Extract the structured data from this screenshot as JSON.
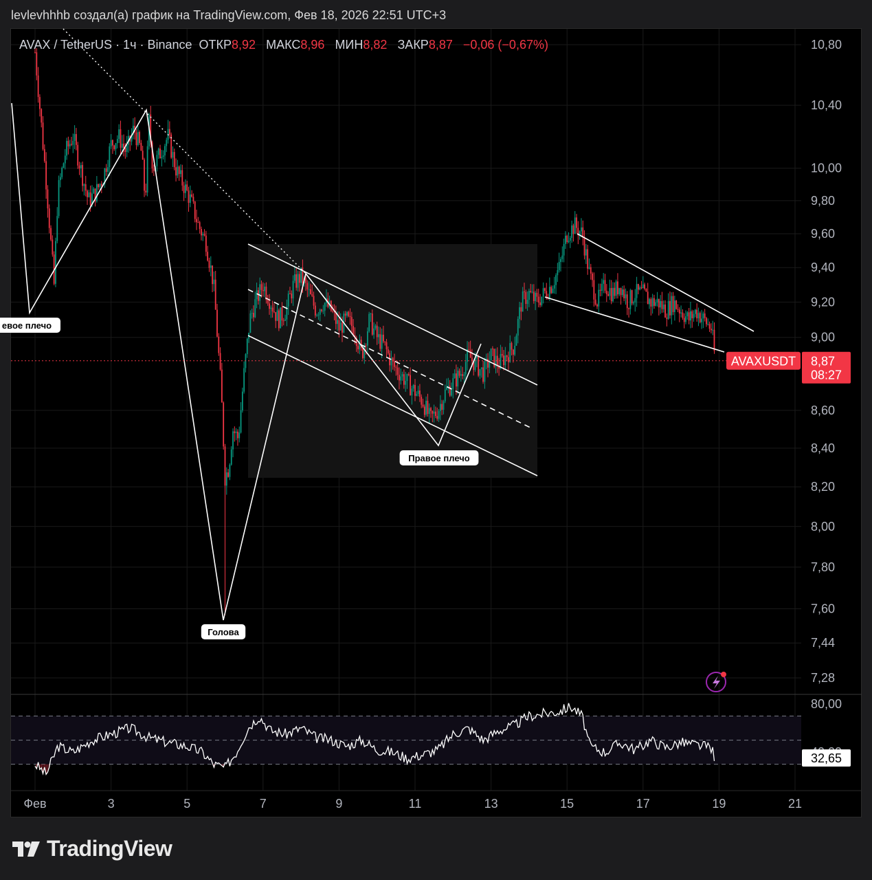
{
  "header": {
    "text": "levlevhhhb создал(а) график на TradingView.com, Фев 18, 2026 22:51 UTC+3"
  },
  "legend": {
    "symbol": "AVAX / TetherUS · 1ч · Binance",
    "open_label": "ОТКР",
    "open_value": "8,92",
    "high_label": "МАКС",
    "high_value": "8,96",
    "low_label": "МИН",
    "low_value": "8,82",
    "close_label": "ЗАКР",
    "close_value": "8,87",
    "change": "−0,06 (−0,67%)"
  },
  "price_tag": {
    "symbol": "AVAXUSDT",
    "price": "8,87",
    "countdown": "08:27"
  },
  "rsi_tag": "32,65",
  "brand": "TradingView",
  "colors": {
    "up": "#089981",
    "down": "#f23645",
    "background": "#000000",
    "grid": "#1a1a1a"
  },
  "chart_data": {
    "type": "candlestick",
    "symbol": "AVAXUSDT",
    "interval": "1h",
    "exchange": "Binance",
    "y_axis": {
      "scale": "log",
      "ticks": [
        "10,80",
        "10,40",
        "10,00",
        "9,80",
        "9,60",
        "9,40",
        "9,20",
        "9,00",
        "8,60",
        "8,40",
        "8,20",
        "8,00",
        "7,80",
        "7,60",
        "7,44",
        "7,28"
      ],
      "tick_values": [
        10.8,
        10.4,
        10.0,
        9.8,
        9.6,
        9.4,
        9.2,
        9.0,
        8.6,
        8.4,
        8.2,
        8.0,
        7.8,
        7.6,
        7.44,
        7.28
      ]
    },
    "x_axis": {
      "ticks": [
        "Фев",
        "3",
        "5",
        "7",
        "9",
        "11",
        "13",
        "15",
        "17",
        "19",
        "21"
      ],
      "tick_days": [
        1,
        3,
        5,
        7,
        9,
        11,
        13,
        15,
        17,
        19,
        21
      ]
    },
    "price_path": [
      [
        1.0,
        10.75
      ],
      [
        1.3,
        9.9
      ],
      [
        1.5,
        9.3
      ],
      [
        1.6,
        9.85
      ],
      [
        1.8,
        10.1
      ],
      [
        2.0,
        10.2
      ],
      [
        2.2,
        10.0
      ],
      [
        2.4,
        9.8
      ],
      [
        2.6,
        9.85
      ],
      [
        2.8,
        9.95
      ],
      [
        3.0,
        10.15
      ],
      [
        3.2,
        10.2
      ],
      [
        3.4,
        10.1
      ],
      [
        3.6,
        10.25
      ],
      [
        3.8,
        10.1
      ],
      [
        3.9,
        9.8
      ],
      [
        4.0,
        10.3
      ],
      [
        4.1,
        10.0
      ],
      [
        4.3,
        10.1
      ],
      [
        4.5,
        10.2
      ],
      [
        4.7,
        10.0
      ],
      [
        4.9,
        9.9
      ],
      [
        5.1,
        9.8
      ],
      [
        5.3,
        9.65
      ],
      [
        5.5,
        9.55
      ],
      [
        5.7,
        9.3
      ],
      [
        5.8,
        9.0
      ],
      [
        5.9,
        8.7
      ],
      [
        6.0,
        8.25
      ],
      [
        6.1,
        8.3
      ],
      [
        6.2,
        8.5
      ],
      [
        6.35,
        8.45
      ],
      [
        6.5,
        8.8
      ],
      [
        6.65,
        9.1
      ],
      [
        6.8,
        9.2
      ],
      [
        7.0,
        9.3
      ],
      [
        7.2,
        9.2
      ],
      [
        7.4,
        9.1
      ],
      [
        7.6,
        9.15
      ],
      [
        7.8,
        9.3
      ],
      [
        8.0,
        9.35
      ],
      [
        8.2,
        9.25
      ],
      [
        8.4,
        9.15
      ],
      [
        8.6,
        9.2
      ],
      [
        8.8,
        9.15
      ],
      [
        9.0,
        9.05
      ],
      [
        9.2,
        9.1
      ],
      [
        9.4,
        9.05
      ],
      [
        9.6,
        8.9
      ],
      [
        9.8,
        9.1
      ],
      [
        10.0,
        9.0
      ],
      [
        10.2,
        8.95
      ],
      [
        10.4,
        8.85
      ],
      [
        10.6,
        8.8
      ],
      [
        10.8,
        8.75
      ],
      [
        11.0,
        8.7
      ],
      [
        11.2,
        8.65
      ],
      [
        11.4,
        8.55
      ],
      [
        11.6,
        8.6
      ],
      [
        11.8,
        8.7
      ],
      [
        12.0,
        8.75
      ],
      [
        12.2,
        8.8
      ],
      [
        12.4,
        8.9
      ],
      [
        12.6,
        8.85
      ],
      [
        12.8,
        8.8
      ],
      [
        13.0,
        8.9
      ],
      [
        13.2,
        8.85
      ],
      [
        13.4,
        8.9
      ],
      [
        13.6,
        8.95
      ],
      [
        13.8,
        9.2
      ],
      [
        14.0,
        9.25
      ],
      [
        14.2,
        9.2
      ],
      [
        14.4,
        9.25
      ],
      [
        14.6,
        9.3
      ],
      [
        14.8,
        9.4
      ],
      [
        15.0,
        9.6
      ],
      [
        15.2,
        9.65
      ],
      [
        15.4,
        9.6
      ],
      [
        15.6,
        9.35
      ],
      [
        15.8,
        9.2
      ],
      [
        16.0,
        9.3
      ],
      [
        16.2,
        9.25
      ],
      [
        16.4,
        9.3
      ],
      [
        16.6,
        9.2
      ],
      [
        16.8,
        9.25
      ],
      [
        17.0,
        9.25
      ],
      [
        17.2,
        9.2
      ],
      [
        17.4,
        9.2
      ],
      [
        17.6,
        9.15
      ],
      [
        17.8,
        9.2
      ],
      [
        18.0,
        9.15
      ],
      [
        18.2,
        9.1
      ],
      [
        18.4,
        9.15
      ],
      [
        18.6,
        9.1
      ],
      [
        18.8,
        9.05
      ],
      [
        18.9,
        8.87
      ]
    ],
    "extremes": {
      "low": 7.57,
      "low_day": 6.0,
      "high": 10.78,
      "high_day": 1.0
    },
    "last": {
      "open": 8.92,
      "high": 8.96,
      "low": 8.82,
      "close": 8.87
    },
    "annotations": [
      {
        "text": "евое плечо"
      },
      {
        "text": "Голова"
      },
      {
        "text": "Правое плечо"
      }
    ],
    "indicator": {
      "name": "RSI",
      "ticks": [
        "80,00",
        "40,00"
      ],
      "bands": [
        70,
        50,
        30
      ],
      "last": 32.65,
      "values": [
        [
          1.0,
          30
        ],
        [
          1.3,
          22
        ],
        [
          1.6,
          45
        ],
        [
          2.0,
          40
        ],
        [
          2.5,
          50
        ],
        [
          3.0,
          55
        ],
        [
          3.5,
          60
        ],
        [
          4.0,
          52
        ],
        [
          4.5,
          48
        ],
        [
          5.0,
          45
        ],
        [
          5.4,
          40
        ],
        [
          5.7,
          30
        ],
        [
          6.0,
          27
        ],
        [
          6.3,
          40
        ],
        [
          6.6,
          60
        ],
        [
          6.9,
          70
        ],
        [
          7.2,
          58
        ],
        [
          7.6,
          55
        ],
        [
          8.0,
          60
        ],
        [
          8.4,
          52
        ],
        [
          8.8,
          50
        ],
        [
          9.2,
          45
        ],
        [
          9.6,
          50
        ],
        [
          10.0,
          42
        ],
        [
          10.4,
          40
        ],
        [
          10.8,
          35
        ],
        [
          11.2,
          38
        ],
        [
          11.6,
          42
        ],
        [
          12.0,
          55
        ],
        [
          12.4,
          60
        ],
        [
          12.8,
          50
        ],
        [
          13.2,
          58
        ],
        [
          13.6,
          62
        ],
        [
          14.0,
          70
        ],
        [
          14.4,
          72
        ],
        [
          14.8,
          74
        ],
        [
          15.1,
          78
        ],
        [
          15.4,
          70
        ],
        [
          15.6,
          45
        ],
        [
          16.0,
          40
        ],
        [
          16.4,
          48
        ],
        [
          16.8,
          42
        ],
        [
          17.2,
          50
        ],
        [
          17.6,
          44
        ],
        [
          18.0,
          48
        ],
        [
          18.4,
          46
        ],
        [
          18.8,
          44
        ],
        [
          18.9,
          32.65
        ]
      ]
    }
  }
}
